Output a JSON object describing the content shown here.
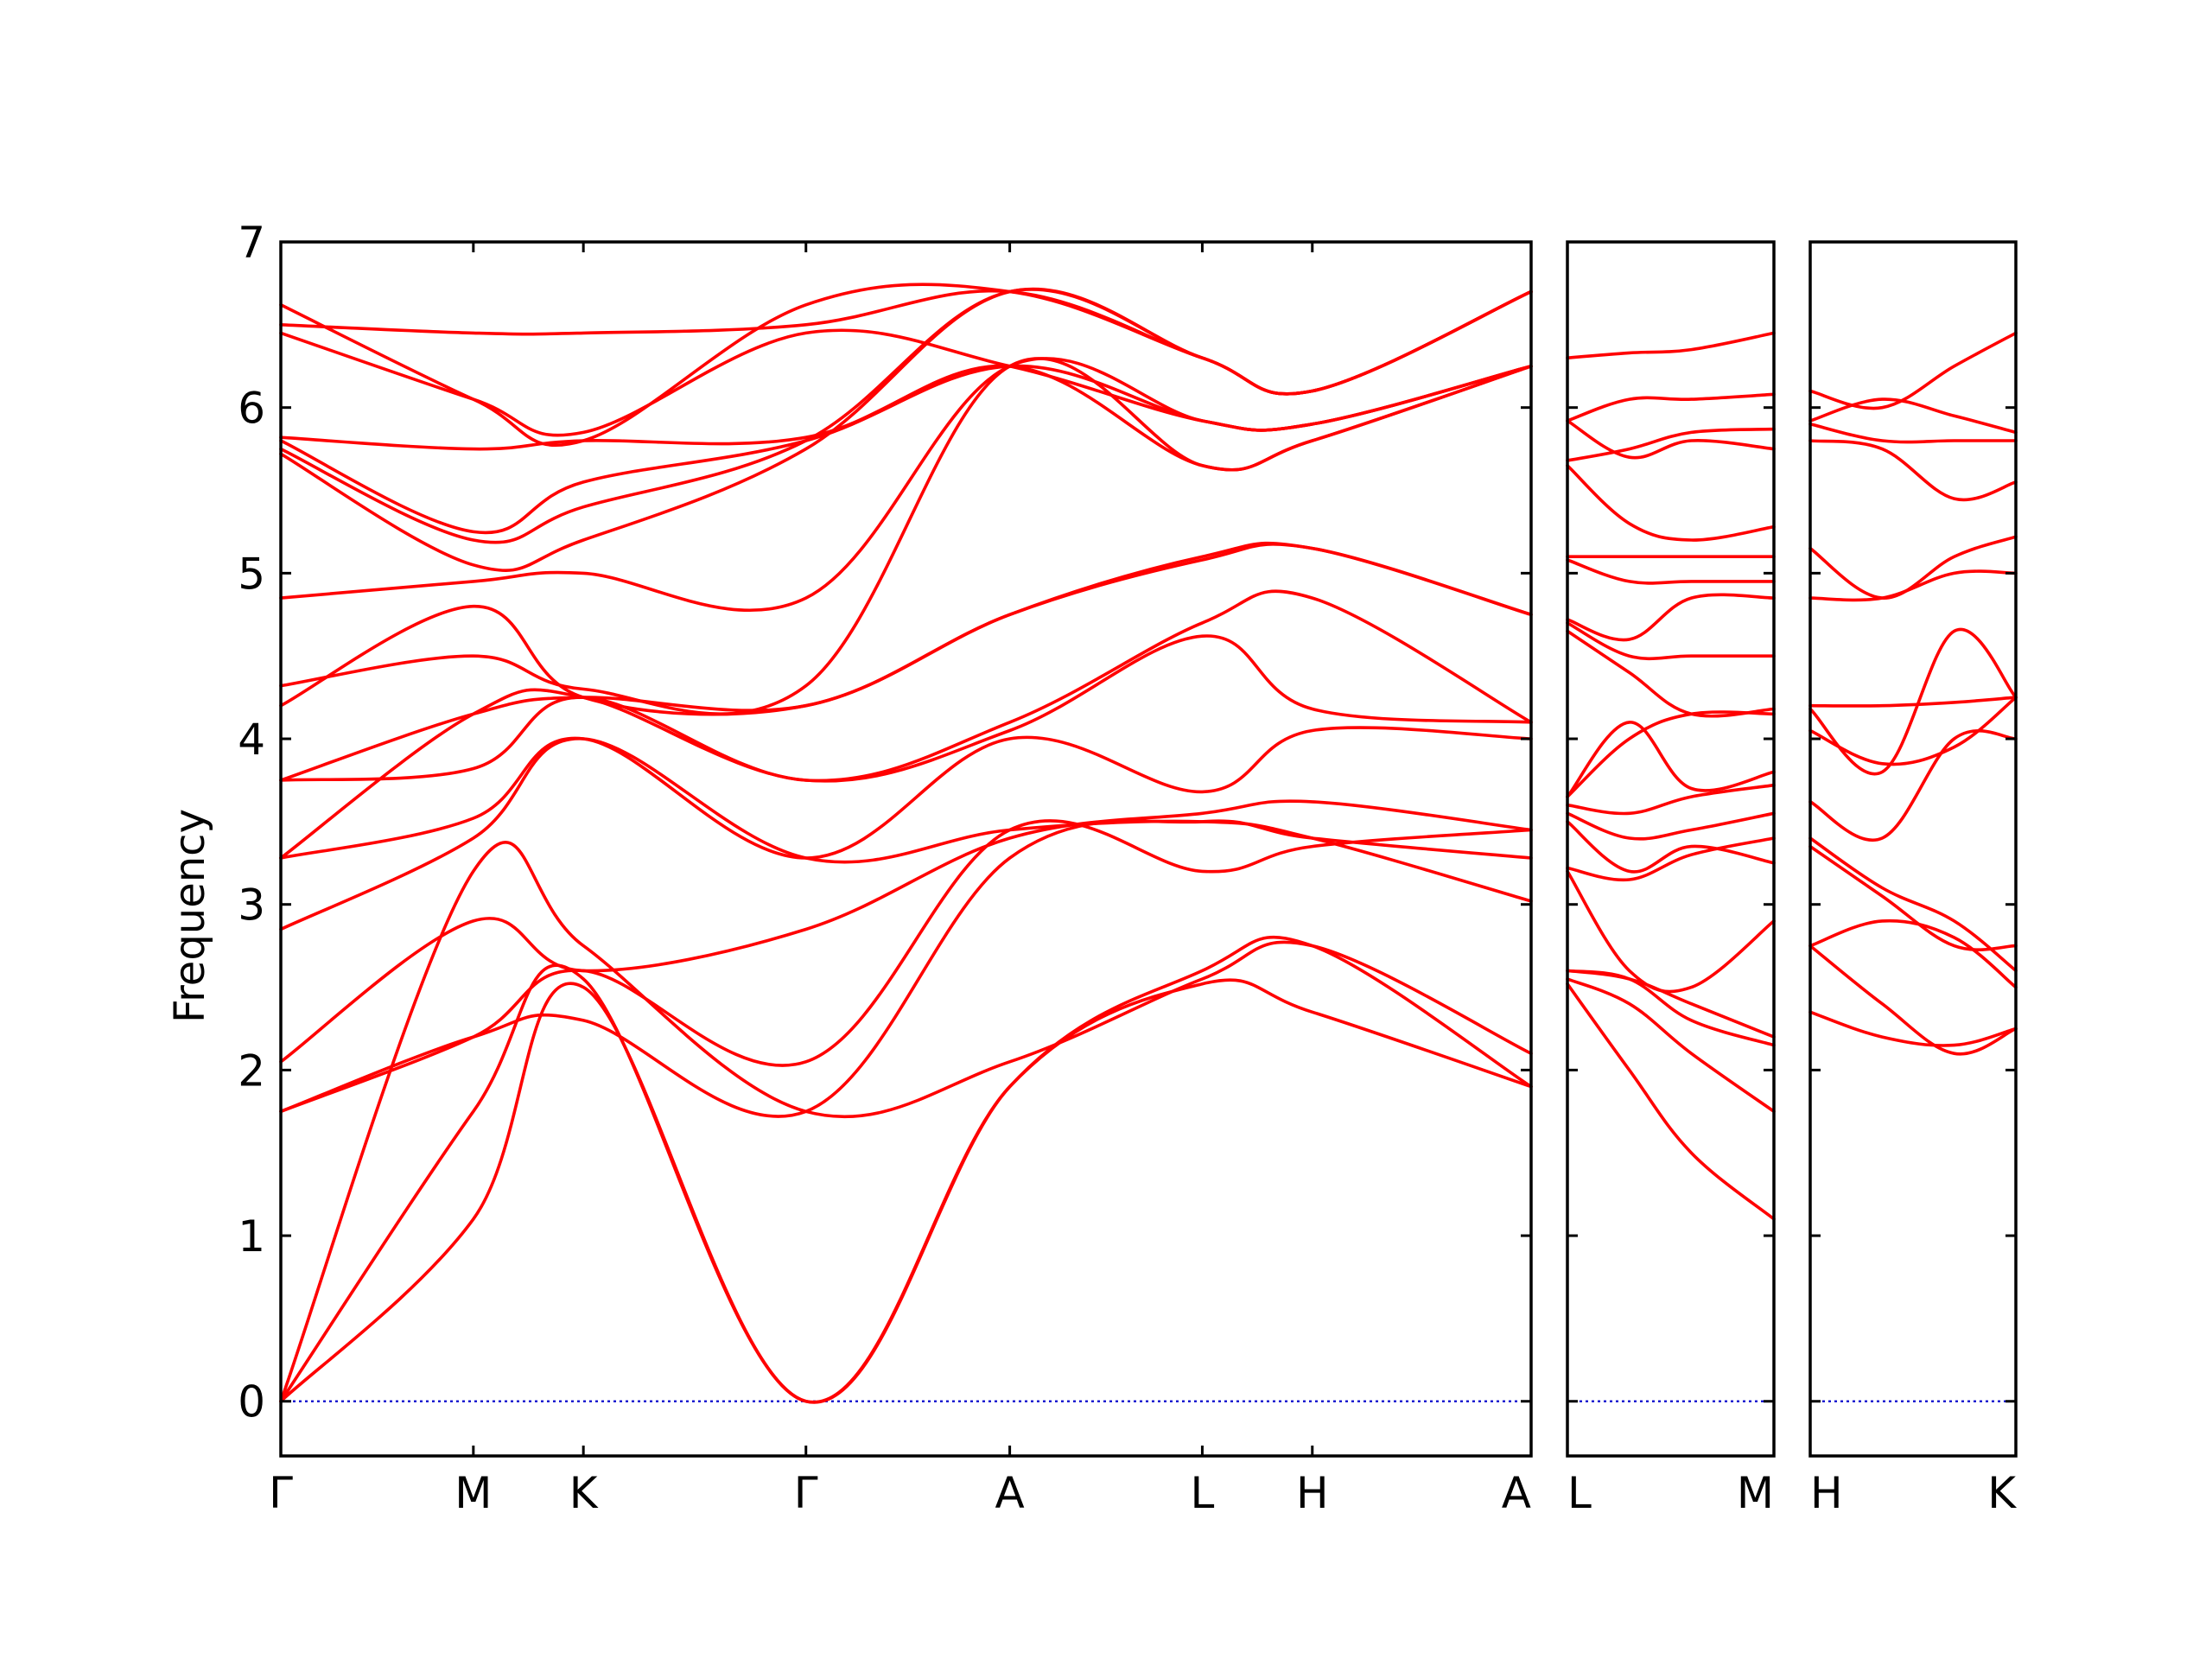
{
  "colors": {
    "band": "#ff0000",
    "zero_line": "#0000cc",
    "axis": "#000000"
  },
  "chart_data": {
    "type": "line",
    "title": "",
    "ylabel": "Frequency",
    "ylim": [
      -0.33,
      7
    ],
    "yticks": [
      0,
      1,
      2,
      3,
      4,
      5,
      6,
      7
    ],
    "grid": false,
    "legend": "none",
    "panels": [
      {
        "id": "p1",
        "path_labels": [
          "Γ",
          "M",
          "K",
          "Γ",
          "A",
          "L",
          "H",
          "A"
        ],
        "kpos": [
          0,
          0.154,
          0.242,
          0.42,
          0.583,
          0.737,
          0.825,
          1.0
        ],
        "series": [
          {
            "x": [
              0,
              0.154,
              0.242,
              0.42,
              0.583,
              0.737,
              0.825,
              1.0
            ],
            "y": [
              0,
              1.1,
              2.5,
              0,
              1.9,
              2.52,
              2.35,
              1.9
            ]
          },
          {
            "x": [
              0,
              0.154,
              0.242,
              0.42,
              0.583,
              0.737,
              0.825,
              1.0
            ],
            "y": [
              0,
              1.75,
              2.55,
              0,
              1.9,
              2.6,
              2.75,
              1.9
            ]
          },
          {
            "x": [
              0,
              0.154,
              0.242,
              0.42,
              0.583,
              0.737,
              0.825,
              1.0
            ],
            "y": [
              0,
              3.2,
              2.75,
              1.75,
              2.05,
              2.55,
              2.75,
              2.1
            ]
          },
          {
            "x": [
              0,
              0.154,
              0.242,
              0.42,
              0.583,
              0.737,
              0.825,
              1.0
            ],
            "y": [
              1.75,
              2.2,
              2.3,
              1.75,
              3.28,
              3.5,
              3.4,
              3.28
            ]
          },
          {
            "x": [
              0,
              0.154,
              0.242,
              0.42,
              0.583,
              0.737,
              0.825,
              1.0
            ],
            "y": [
              1.75,
              2.2,
              2.6,
              2.05,
              3.45,
              3.2,
              3.35,
              3.45
            ]
          },
          {
            "x": [
              0,
              0.154,
              0.242,
              0.42,
              0.583,
              0.737,
              0.825,
              1.0
            ],
            "y": [
              2.05,
              2.9,
              2.6,
              2.85,
              3.4,
              3.55,
              3.62,
              3.45
            ]
          },
          {
            "x": [
              0,
              0.154,
              0.242,
              0.42,
              0.583,
              0.737,
              0.825,
              1.0
            ],
            "y": [
              2.85,
              3.4,
              4.0,
              3.28,
              3.45,
              3.5,
              3.4,
              3.02
            ]
          },
          {
            "x": [
              0,
              0.154,
              0.242,
              0.42,
              0.583,
              0.737,
              0.825,
              1.0
            ],
            "y": [
              3.28,
              3.52,
              4.0,
              3.28,
              4.0,
              3.68,
              4.05,
              4.0
            ]
          },
          {
            "x": [
              0,
              0.154,
              0.242,
              0.42,
              0.583,
              0.737,
              0.825,
              1.0
            ],
            "y": [
              3.28,
              4.15,
              4.25,
              3.75,
              4.05,
              4.62,
              4.18,
              4.1
            ]
          },
          {
            "x": [
              0,
              0.154,
              0.242,
              0.42,
              0.583,
              0.737,
              0.825,
              1.0
            ],
            "y": [
              3.75,
              3.82,
              4.25,
              3.75,
              4.1,
              4.7,
              4.85,
              4.1
            ]
          },
          {
            "x": [
              0,
              0.154,
              0.242,
              0.42,
              0.583,
              0.737,
              0.825,
              1.0
            ],
            "y": [
              3.75,
              4.15,
              4.25,
              4.2,
              4.75,
              5.08,
              5.15,
              4.75
            ]
          },
          {
            "x": [
              0,
              0.154,
              0.242,
              0.42,
              0.583,
              0.737,
              0.825,
              1.0
            ],
            "y": [
              4.2,
              4.8,
              4.25,
              4.2,
              4.75,
              5.1,
              5.15,
              4.75
            ]
          },
          {
            "x": [
              0,
              0.154,
              0.242,
              0.42,
              0.583,
              0.737,
              0.825,
              1.0
            ],
            "y": [
              4.32,
              4.5,
              4.3,
              4.32,
              6.25,
              5.65,
              5.8,
              6.25
            ]
          },
          {
            "x": [
              0,
              0.154,
              0.242,
              0.42,
              0.583,
              0.737,
              0.825,
              1.0
            ],
            "y": [
              4.85,
              4.95,
              5.0,
              4.85,
              6.25,
              5.92,
              5.9,
              6.25
            ]
          },
          {
            "x": [
              0,
              0.154,
              0.242,
              0.42,
              0.583,
              0.737,
              0.825,
              1.0
            ],
            "y": [
              5.72,
              5.05,
              5.2,
              5.75,
              6.7,
              6.3,
              6.1,
              6.7
            ]
          },
          {
            "x": [
              0,
              0.154,
              0.242,
              0.42,
              0.583,
              0.737,
              0.825,
              1.0
            ],
            "y": [
              5.75,
              5.2,
              5.4,
              5.8,
              6.7,
              6.3,
              6.1,
              6.7
            ]
          },
          {
            "x": [
              0,
              0.154,
              0.242,
              0.42,
              0.583,
              0.737,
              0.825,
              1.0
            ],
            "y": [
              5.8,
              5.25,
              5.55,
              5.8,
              6.25,
              5.92,
              5.9,
              6.25
            ]
          },
          {
            "x": [
              0,
              0.154,
              0.242,
              0.42,
              0.583,
              0.737,
              0.825,
              1.0
            ],
            "y": [
              5.82,
              5.75,
              5.8,
              5.82,
              6.25,
              5.65,
              5.8,
              6.25
            ]
          },
          {
            "x": [
              0,
              0.154,
              0.242,
              0.42,
              0.583,
              0.737,
              0.825,
              1.0
            ],
            "y": [
              6.45,
              6.05,
              5.85,
              6.45,
              6.25,
              5.92,
              5.9,
              6.25
            ]
          },
          {
            "x": [
              0,
              0.154,
              0.242,
              0.42,
              0.583,
              0.737,
              0.825,
              1.0
            ],
            "y": [
              6.5,
              6.45,
              6.45,
              6.5,
              6.7,
              6.3,
              6.1,
              6.7
            ]
          },
          {
            "x": [
              0,
              0.154,
              0.242,
              0.42,
              0.583,
              0.737,
              0.825,
              1.0
            ],
            "y": [
              6.62,
              6.05,
              5.8,
              6.62,
              6.7,
              6.3,
              6.1,
              6.7
            ]
          }
        ]
      },
      {
        "id": "p2",
        "path_labels": [
          "L",
          "M"
        ],
        "kpos": [
          0,
          1
        ],
        "series": [
          {
            "x": [
              0,
              0.3,
              0.6,
              1
            ],
            "y": [
              2.52,
              2.0,
              1.5,
              1.1
            ]
          },
          {
            "x": [
              0,
              0.3,
              0.6,
              1
            ],
            "y": [
              2.55,
              2.4,
              2.1,
              1.75
            ]
          },
          {
            "x": [
              0,
              0.3,
              0.6,
              1
            ],
            "y": [
              2.6,
              2.55,
              2.4,
              2.2
            ]
          },
          {
            "x": [
              0,
              0.3,
              0.6,
              1
            ],
            "y": [
              2.6,
              2.55,
              2.3,
              2.15
            ]
          },
          {
            "x": [
              0,
              0.3,
              0.6,
              1
            ],
            "y": [
              3.2,
              2.6,
              2.5,
              2.9
            ]
          },
          {
            "x": [
              0,
              0.3,
              0.6,
              1
            ],
            "y": [
              3.22,
              3.15,
              3.3,
              3.4
            ]
          },
          {
            "x": [
              0,
              0.3,
              0.6,
              1
            ],
            "y": [
              3.5,
              3.2,
              3.35,
              3.25
            ]
          },
          {
            "x": [
              0,
              0.3,
              0.6,
              1
            ],
            "y": [
              3.55,
              3.4,
              3.45,
              3.55
            ]
          },
          {
            "x": [
              0,
              0.3,
              0.6,
              1
            ],
            "y": [
              3.6,
              3.55,
              3.65,
              3.72
            ]
          },
          {
            "x": [
              0,
              0.3,
              0.6,
              1
            ],
            "y": [
              3.65,
              4.1,
              3.7,
              3.8
            ]
          },
          {
            "x": [
              0,
              0.3,
              0.6,
              1
            ],
            "y": [
              3.65,
              4.0,
              4.15,
              4.15
            ]
          },
          {
            "x": [
              0,
              0.3,
              0.6,
              1
            ],
            "y": [
              4.65,
              4.4,
              4.15,
              4.18
            ]
          },
          {
            "x": [
              0,
              0.3,
              0.6,
              1
            ],
            "y": [
              4.7,
              4.5,
              4.5,
              4.5
            ]
          },
          {
            "x": [
              0,
              0.3,
              0.6,
              1
            ],
            "y": [
              4.72,
              4.6,
              4.85,
              4.85
            ]
          },
          {
            "x": [
              0,
              0.3,
              0.6,
              1
            ],
            "y": [
              5.08,
              4.95,
              4.95,
              4.95
            ]
          },
          {
            "x": [
              0,
              0.3,
              0.6,
              1
            ],
            "y": [
              5.1,
              5.1,
              5.1,
              5.1
            ]
          },
          {
            "x": [
              0,
              0.3,
              0.6,
              1
            ],
            "y": [
              5.65,
              5.3,
              5.2,
              5.28
            ]
          },
          {
            "x": [
              0,
              0.3,
              0.6,
              1
            ],
            "y": [
              5.68,
              5.75,
              5.85,
              5.87
            ]
          },
          {
            "x": [
              0,
              0.3,
              0.6,
              1
            ],
            "y": [
              5.92,
              5.7,
              5.8,
              5.75
            ]
          },
          {
            "x": [
              0,
              0.3,
              0.6,
              1
            ],
            "y": [
              5.92,
              6.05,
              6.05,
              6.08
            ]
          },
          {
            "x": [
              0,
              0.3,
              0.6,
              1
            ],
            "y": [
              6.3,
              6.33,
              6.35,
              6.45
            ]
          }
        ]
      },
      {
        "id": "p3",
        "path_labels": [
          "H",
          "K"
        ],
        "kpos": [
          0,
          1
        ],
        "series": [
          {
            "x": [
              0,
              0.35,
              0.7,
              1
            ],
            "y": [
              2.35,
              2.2,
              2.15,
              2.25
            ]
          },
          {
            "x": [
              0,
              0.35,
              0.7,
              1
            ],
            "y": [
              2.75,
              2.4,
              2.1,
              2.25
            ]
          },
          {
            "x": [
              0,
              0.35,
              0.7,
              1
            ],
            "y": [
              2.75,
              2.9,
              2.8,
              2.5
            ]
          },
          {
            "x": [
              0,
              0.35,
              0.7,
              1
            ],
            "y": [
              3.35,
              3.05,
              2.75,
              2.75
            ]
          },
          {
            "x": [
              0,
              0.35,
              0.7,
              1
            ],
            "y": [
              3.4,
              3.1,
              2.9,
              2.6
            ]
          },
          {
            "x": [
              0,
              0.35,
              0.7,
              1
            ],
            "y": [
              3.62,
              3.4,
              4.0,
              4.0
            ]
          },
          {
            "x": [
              0,
              0.35,
              0.7,
              1
            ],
            "y": [
              4.05,
              3.85,
              3.95,
              4.25
            ]
          },
          {
            "x": [
              0,
              0.35,
              0.7,
              1
            ],
            "y": [
              4.18,
              3.8,
              4.65,
              4.25
            ]
          },
          {
            "x": [
              0,
              0.35,
              0.7,
              1
            ],
            "y": [
              4.2,
              4.2,
              4.22,
              4.25
            ]
          },
          {
            "x": [
              0,
              0.35,
              0.7,
              1
            ],
            "y": [
              4.85,
              4.85,
              5.0,
              5.0
            ]
          },
          {
            "x": [
              0,
              0.35,
              0.7,
              1
            ],
            "y": [
              5.15,
              4.85,
              5.1,
              5.22
            ]
          },
          {
            "x": [
              0,
              0.35,
              0.7,
              1
            ],
            "y": [
              5.8,
              5.75,
              5.45,
              5.55
            ]
          },
          {
            "x": [
              0,
              0.35,
              0.7,
              1
            ],
            "y": [
              5.9,
              5.8,
              5.8,
              5.8
            ]
          },
          {
            "x": [
              0,
              0.35,
              0.7,
              1
            ],
            "y": [
              5.92,
              6.05,
              5.95,
              5.85
            ]
          },
          {
            "x": [
              0,
              0.35,
              0.7,
              1
            ],
            "y": [
              6.1,
              6.0,
              6.25,
              6.45
            ]
          }
        ]
      }
    ]
  }
}
